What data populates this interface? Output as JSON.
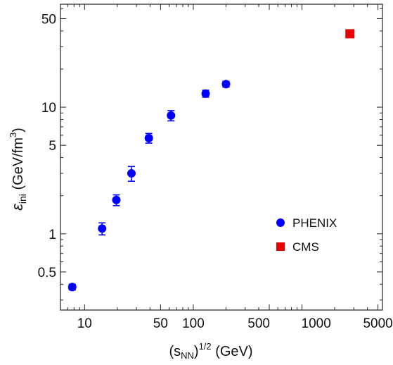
{
  "chart_data": {
    "type": "scatter",
    "x_scale": "log",
    "y_scale": "log",
    "xlim": [
      6,
      5500
    ],
    "ylim": [
      0.25,
      65
    ],
    "x_ticks": [
      {
        "value": 10,
        "label": "10"
      },
      {
        "value": 50,
        "label": "50"
      },
      {
        "value": 100,
        "label": "100"
      },
      {
        "value": 500,
        "label": "500"
      },
      {
        "value": 1000,
        "label": "1000"
      },
      {
        "value": 5000,
        "label": "5000"
      }
    ],
    "y_ticks": [
      {
        "value": 0.5,
        "label": "0.5"
      },
      {
        "value": 1,
        "label": "1"
      },
      {
        "value": 5,
        "label": "5"
      },
      {
        "value": 10,
        "label": "10"
      },
      {
        "value": 50,
        "label": "50"
      }
    ],
    "xlabel_parts": [
      "(s",
      "NN",
      ")",
      "1/2",
      " (GeV)"
    ],
    "ylabel_parts": [
      "ε",
      "ini",
      " (GeV/fm",
      "3",
      ")"
    ],
    "grid": false,
    "legend_position": "lower-right",
    "series": [
      {
        "name": "PHENIX",
        "marker": "circle",
        "color": "#0000ff",
        "points": [
          {
            "x": 7.7,
            "y": 0.38,
            "err": 0.02
          },
          {
            "x": 14.5,
            "y": 1.1,
            "err": 0.12
          },
          {
            "x": 19.6,
            "y": 1.85,
            "err": 0.18
          },
          {
            "x": 27,
            "y": 3.0,
            "err": 0.4
          },
          {
            "x": 39,
            "y": 5.7,
            "err": 0.5
          },
          {
            "x": 62.4,
            "y": 8.6,
            "err": 0.8
          },
          {
            "x": 130,
            "y": 12.8,
            "err": 0.8
          },
          {
            "x": 200,
            "y": 15.2,
            "err": 0.8
          }
        ]
      },
      {
        "name": "CMS",
        "marker": "square",
        "color": "#e60000",
        "points": [
          {
            "x": 2760,
            "y": 38
          }
        ]
      }
    ]
  }
}
